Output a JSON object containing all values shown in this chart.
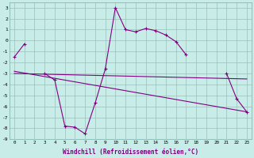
{
  "xlabel": "Windchill (Refroidissement éolien,°C)",
  "background_color": "#c8ece8",
  "line_color": "#800080",
  "grid_color": "#9dbfba",
  "x_hours": [
    0,
    1,
    2,
    3,
    4,
    5,
    6,
    7,
    8,
    9,
    10,
    11,
    12,
    13,
    14,
    15,
    16,
    17,
    18,
    19,
    20,
    21,
    22,
    23
  ],
  "windchill": [
    -1.5,
    -0.3,
    null,
    -3.0,
    -3.6,
    -7.8,
    -7.9,
    -8.5,
    -5.7,
    -2.6,
    3.0,
    1.0,
    0.8,
    1.1,
    0.9,
    0.5,
    -0.1,
    -1.3,
    null,
    null,
    null,
    -3.0,
    -5.3,
    -6.5
  ],
  "trend1_x": [
    0,
    23
  ],
  "trend1_y": [
    -3.0,
    -3.5
  ],
  "trend2_x": [
    0,
    23
  ],
  "trend2_y": [
    -2.8,
    -6.5
  ],
  "ylim": [
    -9,
    3.5
  ],
  "yticks": [
    -9,
    -8,
    -7,
    -6,
    -5,
    -4,
    -3,
    -2,
    -1,
    0,
    1,
    2,
    3
  ],
  "xticks": [
    0,
    1,
    2,
    3,
    4,
    5,
    6,
    7,
    8,
    9,
    10,
    11,
    12,
    13,
    14,
    15,
    16,
    17,
    18,
    19,
    20,
    21,
    22,
    23
  ]
}
